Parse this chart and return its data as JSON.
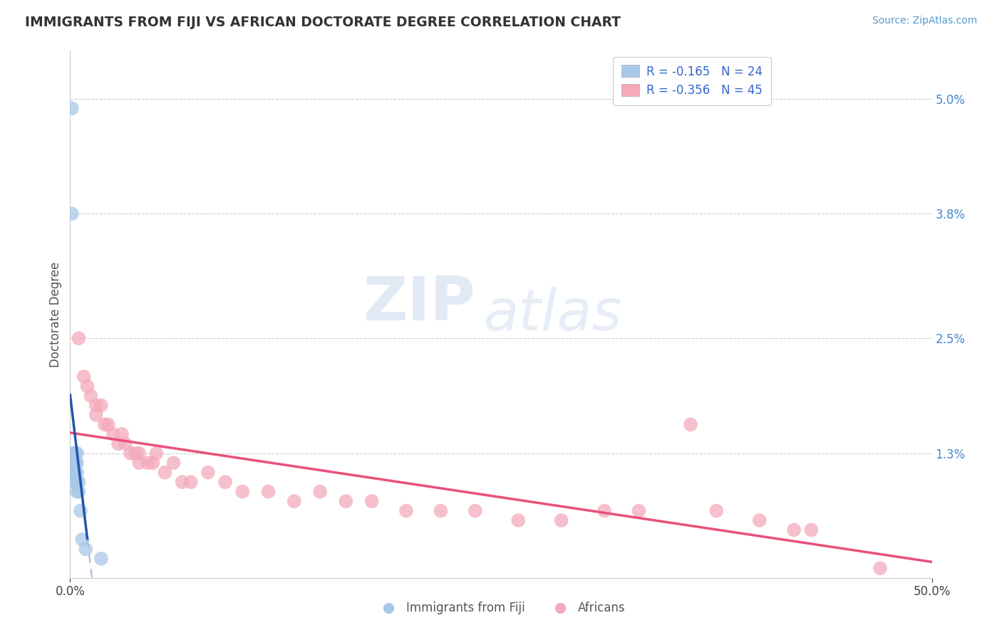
{
  "title": "IMMIGRANTS FROM FIJI VS AFRICAN DOCTORATE DEGREE CORRELATION CHART",
  "source_text": "Source: ZipAtlas.com",
  "ylabel": "Doctorate Degree",
  "xlim": [
    0.0,
    0.5
  ],
  "ylim": [
    0.0,
    0.055
  ],
  "fiji_color": "#a8c8e8",
  "african_color": "#f4aabb",
  "fiji_line_color": "#2255aa",
  "fiji_line_dashed_color": "#aabbdd",
  "african_line_color": "#e8507a",
  "background_color": "#ffffff",
  "grid_color": "#cccccc",
  "legend1_r": "-0.165",
  "legend1_n": "24",
  "legend2_r": "-0.356",
  "legend2_n": "45",
  "fiji_x": [
    0.001,
    0.001,
    0.002,
    0.002,
    0.002,
    0.002,
    0.003,
    0.003,
    0.003,
    0.003,
    0.003,
    0.003,
    0.003,
    0.004,
    0.004,
    0.004,
    0.004,
    0.004,
    0.005,
    0.005,
    0.006,
    0.007,
    0.009,
    0.018
  ],
  "fiji_y": [
    0.049,
    0.038,
    0.013,
    0.013,
    0.012,
    0.012,
    0.013,
    0.012,
    0.012,
    0.011,
    0.011,
    0.01,
    0.01,
    0.013,
    0.012,
    0.011,
    0.01,
    0.009,
    0.01,
    0.009,
    0.007,
    0.004,
    0.003,
    0.002
  ],
  "african_x": [
    0.005,
    0.008,
    0.01,
    0.012,
    0.015,
    0.015,
    0.018,
    0.02,
    0.022,
    0.025,
    0.028,
    0.03,
    0.032,
    0.035,
    0.038,
    0.04,
    0.04,
    0.045,
    0.048,
    0.05,
    0.055,
    0.06,
    0.065,
    0.07,
    0.08,
    0.09,
    0.1,
    0.115,
    0.13,
    0.145,
    0.16,
    0.175,
    0.195,
    0.215,
    0.235,
    0.26,
    0.285,
    0.33,
    0.36,
    0.4,
    0.43,
    0.47,
    0.42,
    0.375,
    0.31
  ],
  "african_y": [
    0.025,
    0.021,
    0.02,
    0.019,
    0.018,
    0.017,
    0.018,
    0.016,
    0.016,
    0.015,
    0.014,
    0.015,
    0.014,
    0.013,
    0.013,
    0.013,
    0.012,
    0.012,
    0.012,
    0.013,
    0.011,
    0.012,
    0.01,
    0.01,
    0.011,
    0.01,
    0.009,
    0.009,
    0.008,
    0.009,
    0.008,
    0.008,
    0.007,
    0.007,
    0.007,
    0.006,
    0.006,
    0.007,
    0.016,
    0.006,
    0.005,
    0.001,
    0.005,
    0.007,
    0.007
  ]
}
